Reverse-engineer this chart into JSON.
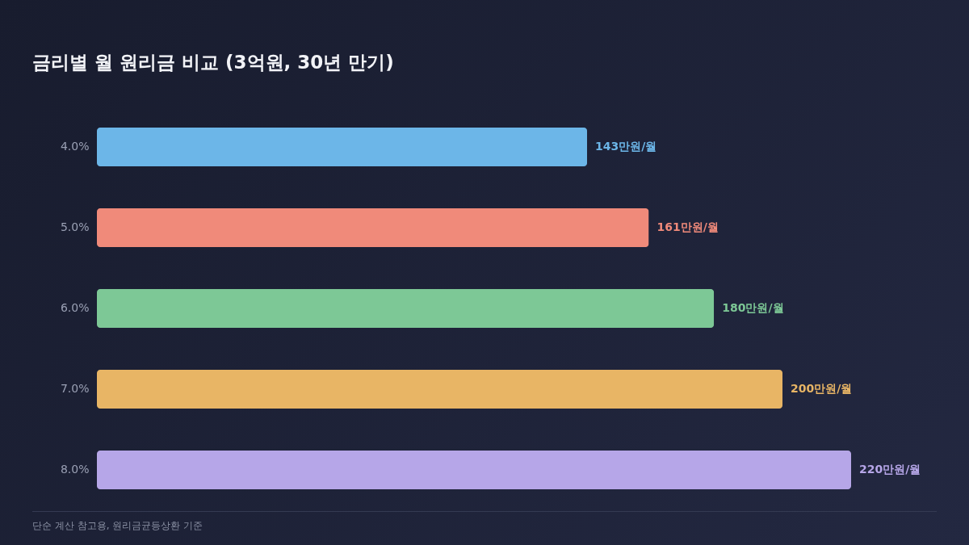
{
  "chart_data": {
    "type": "bar",
    "orientation": "horizontal",
    "title": "금리별 월 원리금 비교 (3억원, 30년 만기)",
    "categories": [
      "4.0%",
      "5.0%",
      "6.0%",
      "7.0%",
      "8.0%"
    ],
    "values": [
      143,
      161,
      180,
      200,
      220
    ],
    "value_labels": [
      "143만원/월",
      "161만원/월",
      "180만원/월",
      "200만원/월",
      "220만원/월"
    ],
    "colors": [
      "#6cb6e8",
      "#f08a7a",
      "#7dc896",
      "#e8b565",
      "#b6a6e8"
    ],
    "annotations": [
      "단순 계산 참고용, 원리금균등상환 기준"
    ]
  }
}
